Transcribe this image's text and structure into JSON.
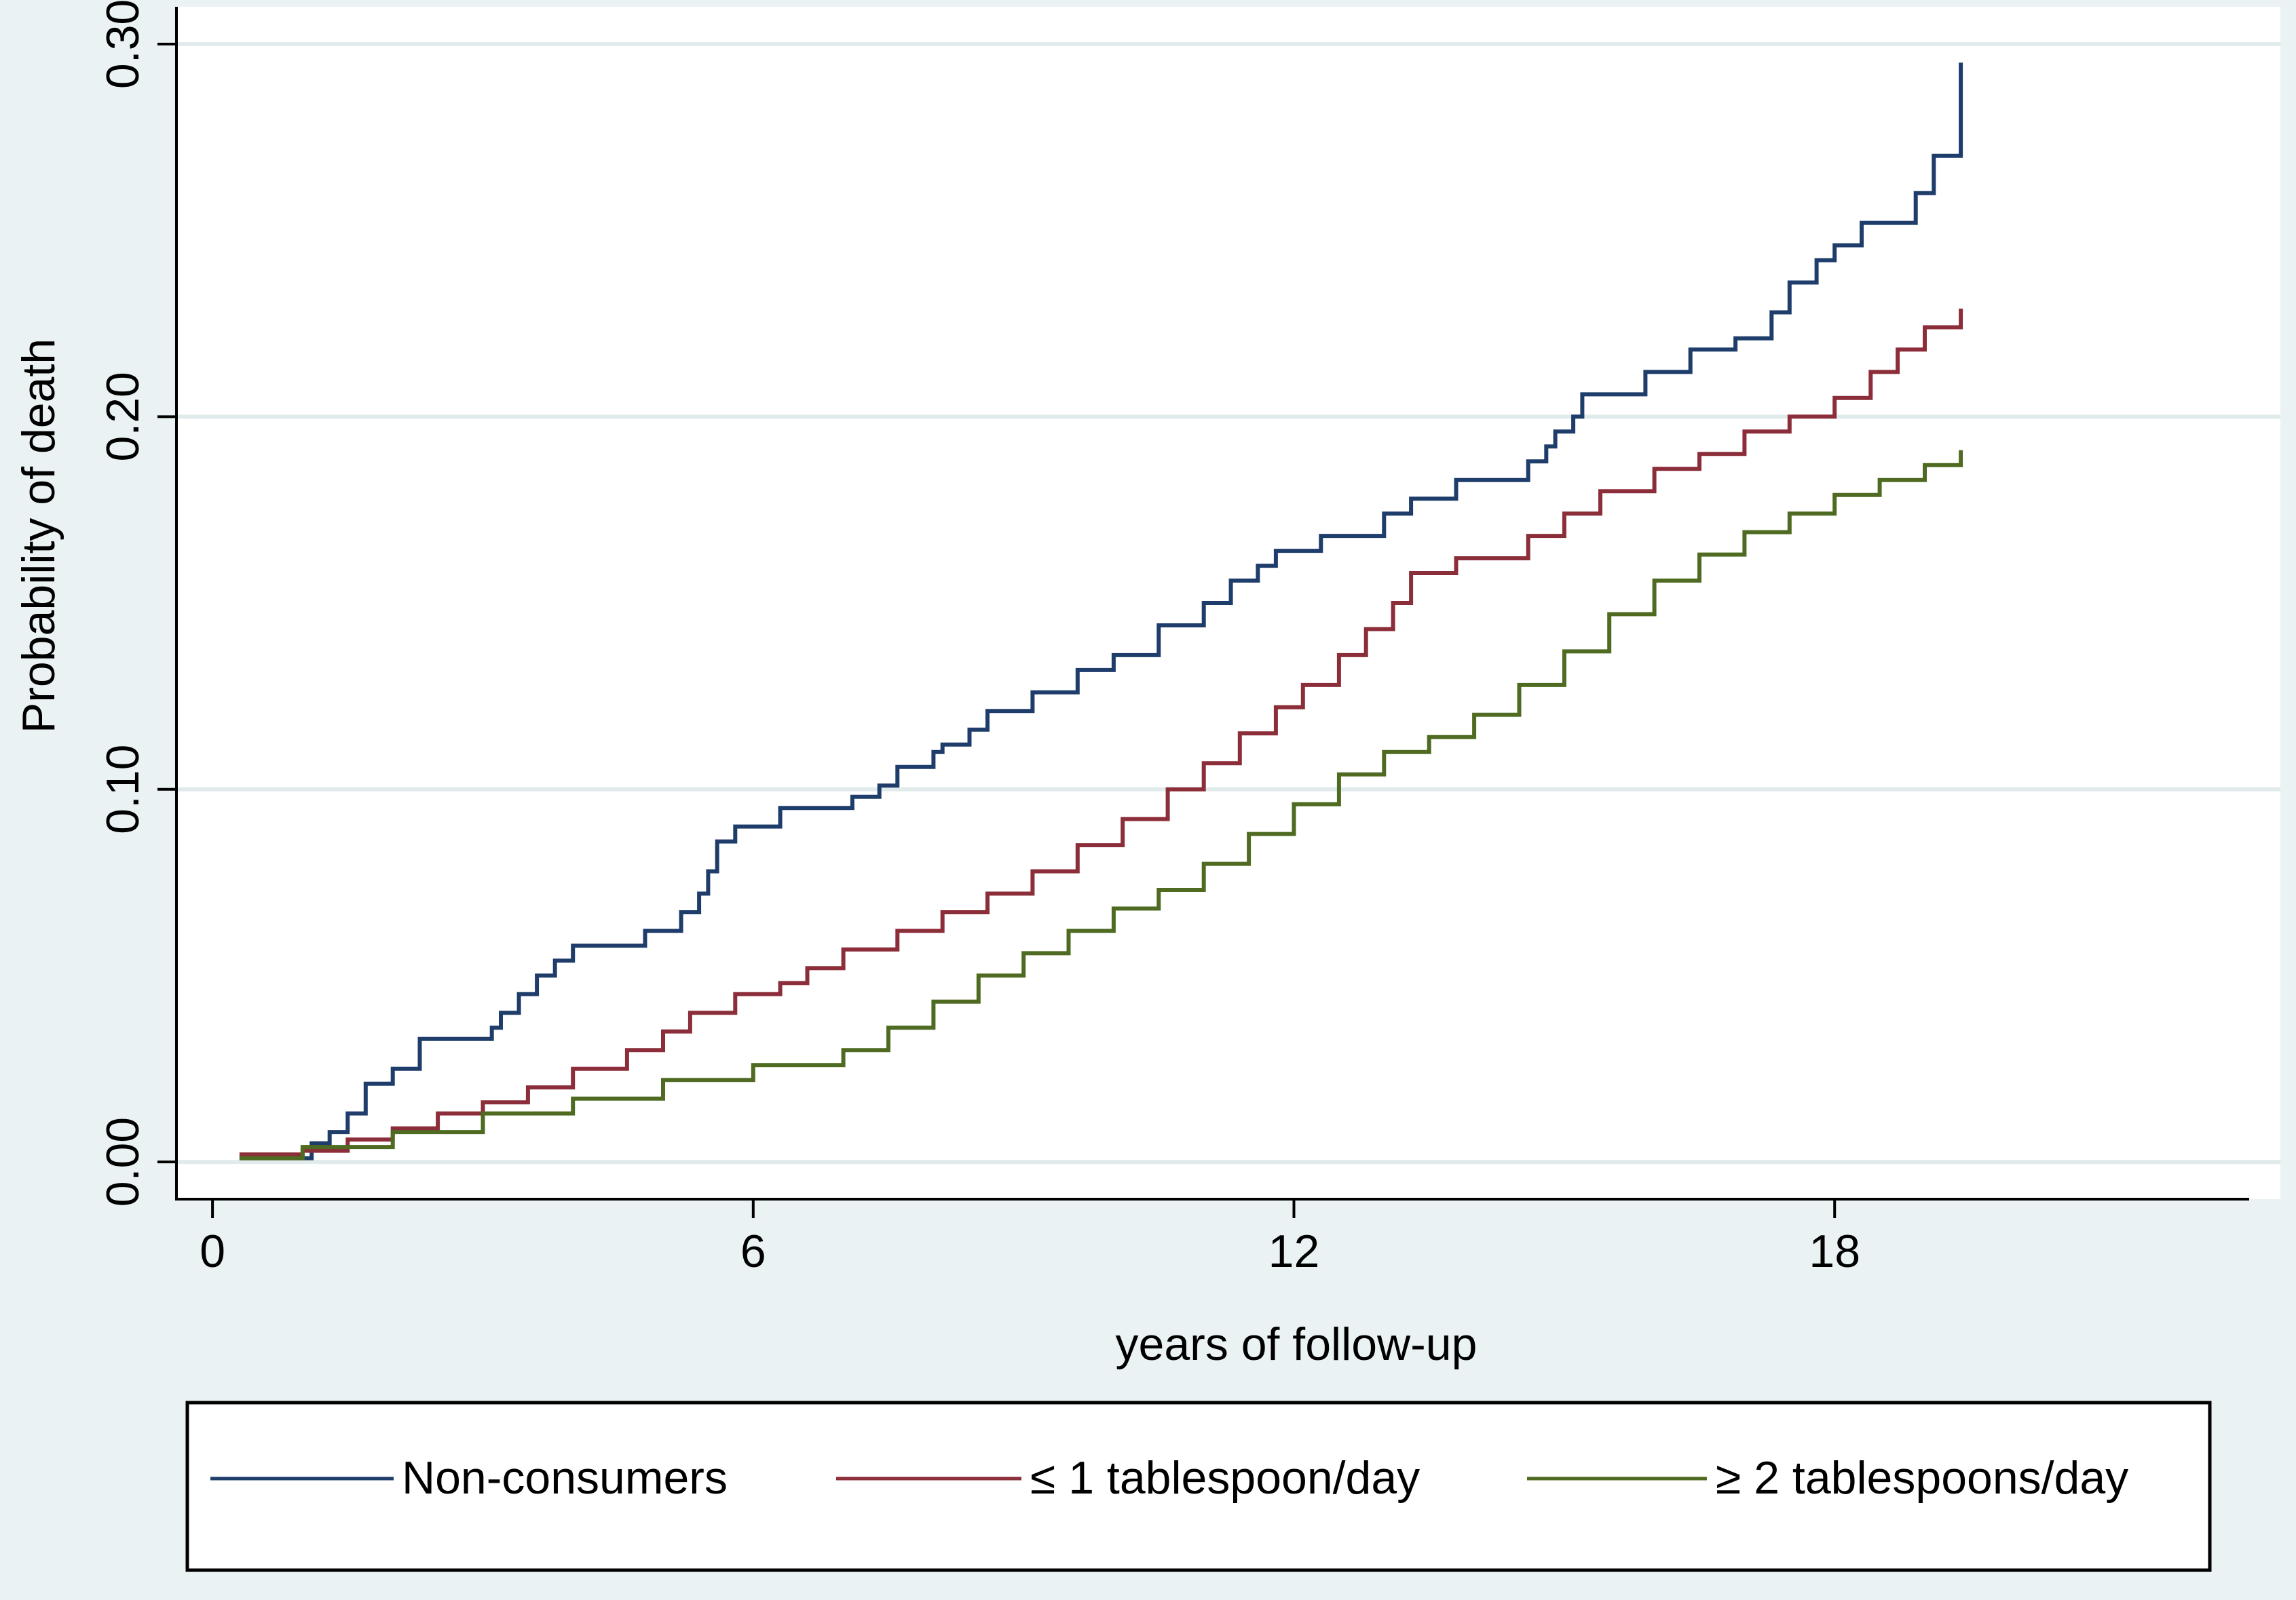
{
  "chart_data": {
    "type": "line",
    "title": "",
    "xlabel": "years of follow-up",
    "ylabel": "Probability of death",
    "xlim": [
      -0.4,
      22.6
    ],
    "ylim": [
      -0.01,
      0.31
    ],
    "xticks": [
      0,
      6,
      12,
      18
    ],
    "xtick_labels": [
      "0",
      "6",
      "12",
      "18"
    ],
    "yticks": [
      0.0,
      0.1,
      0.2,
      0.3
    ],
    "ytick_labels": [
      "0.00",
      "0.10",
      "0.20",
      "0.30"
    ],
    "grid": "horizontal",
    "legend_position": "bottom",
    "series": [
      {
        "name": "Non-consumers",
        "color": "#1f3d6b",
        "x": [
          0.3,
          0.9,
          1.1,
          1.3,
          1.5,
          1.7,
          2.0,
          2.3,
          3.1,
          3.2,
          3.4,
          3.6,
          3.8,
          4.0,
          4.3,
          4.8,
          5.2,
          5.4,
          5.5,
          5.6,
          5.8,
          6.3,
          7.1,
          7.4,
          7.6,
          8.0,
          8.1,
          8.4,
          8.6,
          9.1,
          9.6,
          10.0,
          10.5,
          11.0,
          11.3,
          11.6,
          11.8,
          12.3,
          13.0,
          13.3,
          13.8,
          14.6,
          14.8,
          14.9,
          15.1,
          15.2,
          15.9,
          16.4,
          16.9,
          17.3,
          17.5,
          17.8,
          18.0,
          18.3,
          18.9,
          19.1
        ],
        "y": [
          0.001,
          0.001,
          0.005,
          0.008,
          0.013,
          0.021,
          0.025,
          0.033,
          0.036,
          0.04,
          0.045,
          0.05,
          0.054,
          0.058,
          0.058,
          0.062,
          0.067,
          0.072,
          0.078,
          0.086,
          0.09,
          0.095,
          0.098,
          0.101,
          0.106,
          0.11,
          0.112,
          0.116,
          0.121,
          0.126,
          0.132,
          0.136,
          0.144,
          0.15,
          0.156,
          0.16,
          0.164,
          0.168,
          0.174,
          0.178,
          0.183,
          0.188,
          0.192,
          0.196,
          0.2,
          0.206,
          0.212,
          0.218,
          0.221,
          0.228,
          0.236,
          0.242,
          0.246,
          0.252,
          0.26,
          0.27
        ],
        "x_end": 19.4,
        "y_end": 0.295
      },
      {
        "name": "≤ 1 tablespoon/day",
        "color": "#8c2e3a",
        "x": [
          0.3,
          1.0,
          1.5,
          2.0,
          2.5,
          3.0,
          3.5,
          4.0,
          4.6,
          5.0,
          5.3,
          5.8,
          6.3,
          6.6,
          7.0,
          7.6,
          8.1,
          8.6,
          9.1,
          9.6,
          10.1,
          10.6,
          11.0,
          11.4,
          11.8,
          12.1,
          12.5,
          12.8,
          13.1,
          13.3,
          13.8,
          14.6,
          15.0,
          15.4,
          16.0,
          16.5,
          17.0,
          17.5,
          18.0,
          18.4,
          18.7,
          19.0
        ],
        "y": [
          0.002,
          0.003,
          0.006,
          0.009,
          0.013,
          0.016,
          0.02,
          0.025,
          0.03,
          0.035,
          0.04,
          0.045,
          0.048,
          0.052,
          0.057,
          0.062,
          0.067,
          0.072,
          0.078,
          0.085,
          0.092,
          0.1,
          0.107,
          0.115,
          0.122,
          0.128,
          0.136,
          0.143,
          0.15,
          0.158,
          0.162,
          0.168,
          0.174,
          0.18,
          0.186,
          0.19,
          0.196,
          0.2,
          0.205,
          0.212,
          0.218,
          0.224
        ],
        "x_end": 19.4,
        "y_end": 0.229
      },
      {
        "name": "≥ 2 tablespoons/day",
        "color": "#4f6b22",
        "x": [
          0.3,
          1.0,
          2.0,
          3.0,
          4.0,
          5.0,
          6.0,
          7.0,
          7.5,
          8.0,
          8.5,
          9.0,
          9.5,
          10.0,
          10.5,
          11.0,
          11.5,
          12.0,
          12.5,
          13.0,
          13.5,
          14.0,
          14.5,
          15.0,
          15.5,
          16.0,
          16.5,
          17.0,
          17.5,
          18.0,
          18.5,
          19.0
        ],
        "y": [
          0.001,
          0.004,
          0.008,
          0.013,
          0.017,
          0.022,
          0.026,
          0.03,
          0.036,
          0.043,
          0.05,
          0.056,
          0.062,
          0.068,
          0.073,
          0.08,
          0.088,
          0.096,
          0.104,
          0.11,
          0.114,
          0.12,
          0.128,
          0.137,
          0.147,
          0.156,
          0.163,
          0.169,
          0.174,
          0.179,
          0.183,
          0.187
        ],
        "x_end": 19.4,
        "y_end": 0.191
      }
    ]
  }
}
